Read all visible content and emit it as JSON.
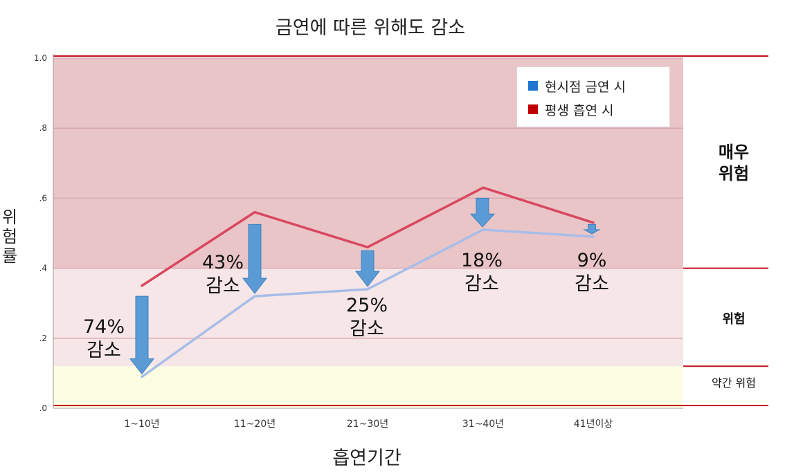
{
  "chart_data": {
    "type": "line",
    "title": "금연에 따른 위해도 감소",
    "xlabel": "흡연기간",
    "ylabel": "위험률",
    "categories": [
      "1~10년",
      "11~20년",
      "21~30년",
      "31~40년",
      "41년이상"
    ],
    "ylim": [
      0,
      1.0
    ],
    "yticks": [
      ".0",
      ".2",
      ".4",
      ".6",
      ".8",
      "1.0"
    ],
    "grid": true,
    "legend_position": "top-right",
    "series": [
      {
        "name": "현시점 금연 시",
        "color": "#1f77d0",
        "line_color": "#a7bde8",
        "values": [
          0.09,
          0.32,
          0.34,
          0.51,
          0.49
        ]
      },
      {
        "name": "평생 흡연 시",
        "color": "#c00000",
        "line_color": "#d9475e",
        "values": [
          0.35,
          0.56,
          0.46,
          0.63,
          0.53
        ]
      }
    ],
    "zones": [
      {
        "label_line1": "매우",
        "label_line2": "위험",
        "from": 0.4,
        "to": 1.0,
        "color": "#e9c5c8"
      },
      {
        "label": "위험",
        "from": 0.12,
        "to": 0.4,
        "color": "#f6e6e8"
      },
      {
        "label": "약간 위험",
        "from": 0.0,
        "to": 0.12,
        "color": "#fdfde4"
      }
    ],
    "annotations": [
      {
        "percent": "74%",
        "text": "감소"
      },
      {
        "percent": "43%",
        "text": "감소"
      },
      {
        "percent": "25%",
        "text": "감소"
      },
      {
        "percent": "18%",
        "text": "감소"
      },
      {
        "percent": "9%",
        "text": "감소"
      }
    ],
    "arrow_color": "#5b9bd5"
  }
}
